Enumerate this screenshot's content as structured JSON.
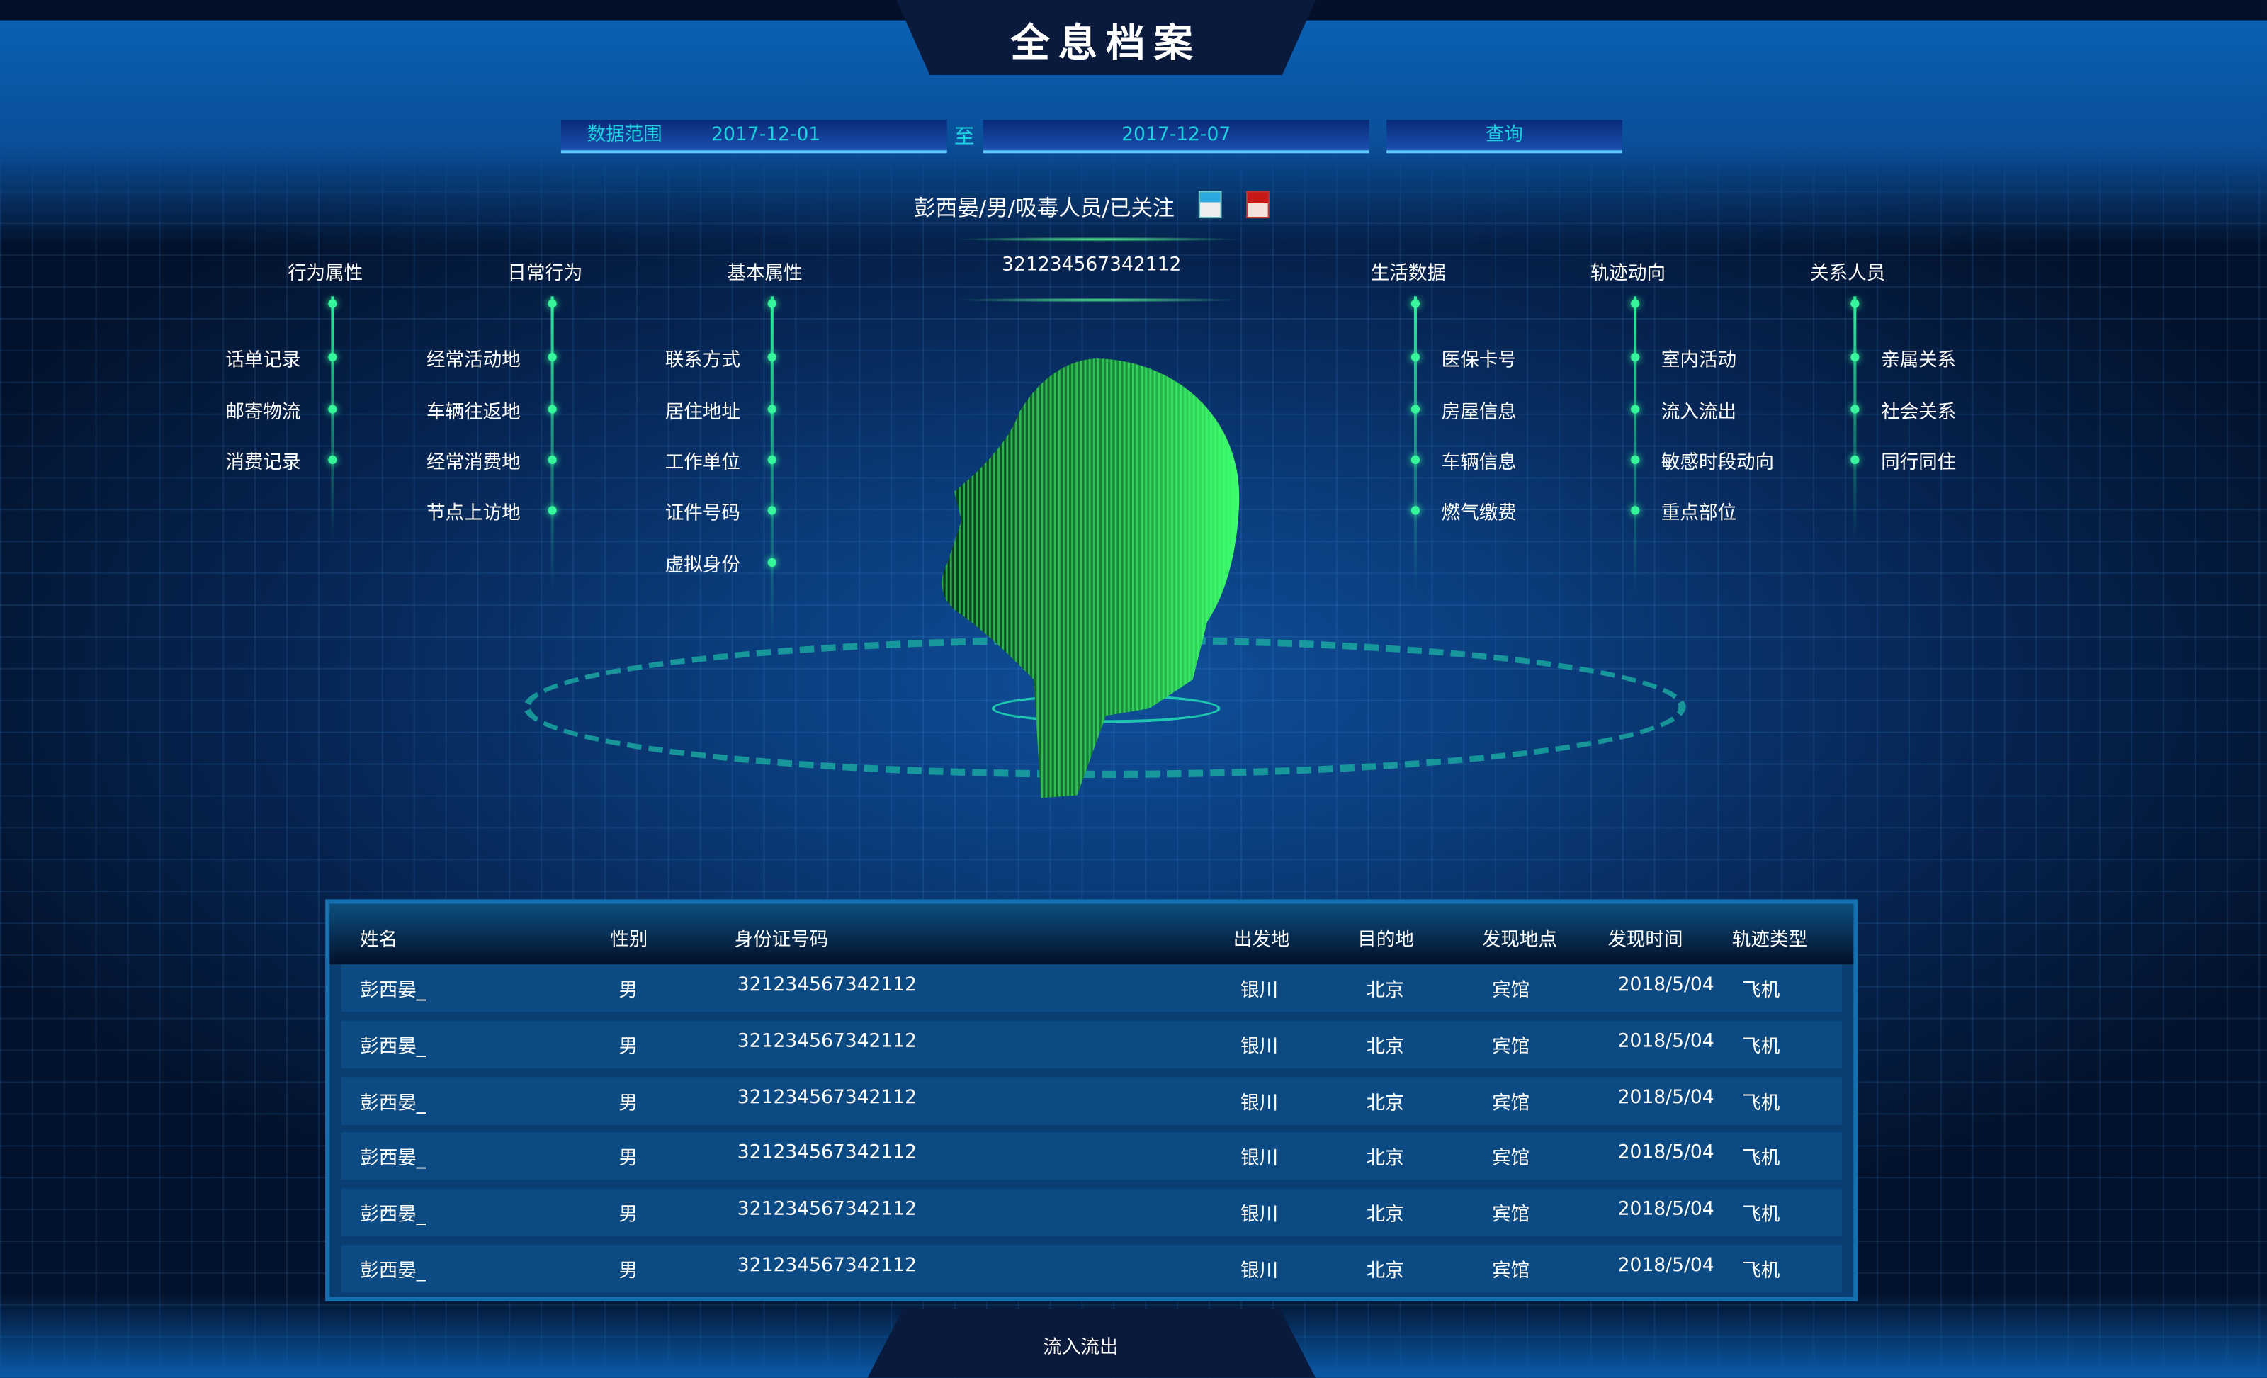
{
  "header": {
    "title": "全息档案"
  },
  "query": {
    "range_label": "数据范围",
    "start_date": "2017-12-01",
    "to_label": "至",
    "end_date": "2017-12-07",
    "search_label": "查询"
  },
  "person": {
    "summary": "彭西晏/男/吸毒人员/已关注",
    "id_number": "321234567342112",
    "avatars": [
      "id-photo-icon",
      "avatar-photo-icon"
    ]
  },
  "categories": [
    {
      "title": "行为属性",
      "items": [
        "话单记录",
        "邮寄物流",
        "消费记录"
      ]
    },
    {
      "title": "日常行为",
      "items": [
        "经常活动地",
        "车辆往返地",
        "经常消费地",
        "节点上访地"
      ]
    },
    {
      "title": "基本属性",
      "items": [
        "联系方式",
        "居住地址",
        "工作单位",
        "证件号码",
        "虚拟身份"
      ]
    },
    {
      "title": "生活数据",
      "items": [
        "医保卡号",
        "房屋信息",
        "车辆信息",
        "燃气缴费"
      ]
    },
    {
      "title": "轨迹动向",
      "items": [
        "室内活动",
        "流入流出",
        "敏感时段动向",
        "重点部位"
      ]
    },
    {
      "title": "关系人员",
      "items": [
        "亲属关系",
        "社会关系",
        "同行同住"
      ]
    }
  ],
  "table": {
    "columns": [
      "姓名",
      "性别",
      "身份证号码",
      "出发地",
      "目的地",
      "发现地点",
      "发现时间",
      "轨迹类型"
    ],
    "rows": [
      [
        "彭西晏_",
        "男",
        "321234567342112",
        "银川",
        "北京",
        "宾馆",
        "2018/5/04",
        "飞机"
      ],
      [
        "彭西晏_",
        "男",
        "321234567342112",
        "银川",
        "北京",
        "宾馆",
        "2018/5/04",
        "飞机"
      ],
      [
        "彭西晏_",
        "男",
        "321234567342112",
        "银川",
        "北京",
        "宾馆",
        "2018/5/04",
        "飞机"
      ],
      [
        "彭西晏_",
        "男",
        "321234567342112",
        "银川",
        "北京",
        "宾馆",
        "2018/5/04",
        "飞机"
      ],
      [
        "彭西晏_",
        "男",
        "321234567342112",
        "银川",
        "北京",
        "宾馆",
        "2018/5/04",
        "飞机"
      ],
      [
        "彭西晏_",
        "男",
        "321234567342112",
        "银川",
        "北京",
        "宾馆",
        "2018/5/04",
        "飞机"
      ]
    ]
  },
  "footer": {
    "tab_label": "流入流出"
  },
  "colors": {
    "accent_cyan": "#1fd0e0",
    "accent_green": "#37f59b",
    "panel_blue": "#0b4a82"
  }
}
